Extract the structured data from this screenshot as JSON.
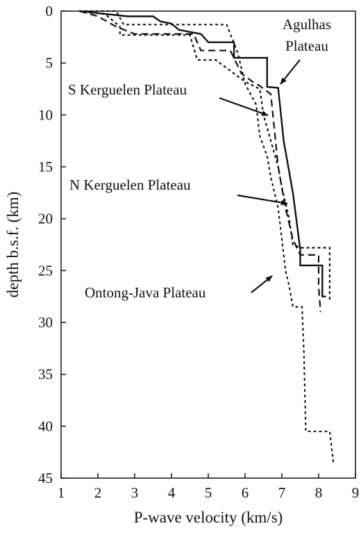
{
  "chart_data": {
    "type": "line",
    "xlabel": "P-wave velocity (km/s)",
    "ylabel": "depth b.s.f. (km)",
    "xlim": [
      1,
      9
    ],
    "ylim": [
      0,
      45
    ],
    "y_inverted": true,
    "x_ticks": [
      1,
      2,
      3,
      4,
      5,
      6,
      7,
      8,
      9
    ],
    "y_ticks": [
      0,
      5,
      10,
      15,
      20,
      25,
      30,
      35,
      40,
      45
    ],
    "grid": false,
    "legend": "none",
    "series": [
      {
        "style": "solid",
        "label_ref": "agulhas",
        "points": [
          [
            1.5,
            0
          ],
          [
            2.8,
            0.5
          ],
          [
            3.5,
            0.5
          ],
          [
            3.7,
            1.0
          ],
          [
            4.0,
            1.2
          ],
          [
            4.2,
            1.8
          ],
          [
            4.8,
            2.2
          ],
          [
            5.0,
            3.0
          ],
          [
            5.7,
            3.0
          ],
          [
            5.7,
            4.5
          ],
          [
            6.6,
            4.5
          ],
          [
            6.6,
            7.3
          ],
          [
            6.9,
            7.4
          ],
          [
            7.05,
            12.5
          ],
          [
            7.3,
            17.5
          ],
          [
            7.5,
            23.0
          ],
          [
            7.5,
            24.5
          ],
          [
            8.1,
            24.5
          ],
          [
            8.1,
            27.5
          ],
          [
            8.2,
            27.5
          ]
        ]
      },
      {
        "style": "dashed",
        "label_ref": "s_kerguelen",
        "points": [
          [
            1.5,
            0
          ],
          [
            2.0,
            0.5
          ],
          [
            2.5,
            1.5
          ],
          [
            3.0,
            2.2
          ],
          [
            4.6,
            2.2
          ],
          [
            4.8,
            3.8
          ],
          [
            5.6,
            3.8
          ],
          [
            5.9,
            6.0
          ],
          [
            6.2,
            6.8
          ],
          [
            6.4,
            7.2
          ],
          [
            6.7,
            8.0
          ],
          [
            6.9,
            15.0
          ],
          [
            7.0,
            17.0
          ],
          [
            7.1,
            19.0
          ],
          [
            7.3,
            22.0
          ],
          [
            7.5,
            23.5
          ],
          [
            8.0,
            23.5
          ],
          [
            8.0,
            26.5
          ],
          [
            8.05,
            29.0
          ]
        ]
      },
      {
        "style": "dotted",
        "label_ref": "n_kerguelen",
        "points": [
          [
            1.5,
            0
          ],
          [
            2.2,
            0.3
          ],
          [
            2.6,
            1.5
          ],
          [
            2.6,
            2.3
          ],
          [
            4.5,
            2.3
          ],
          [
            4.7,
            4.7
          ],
          [
            5.2,
            4.7
          ],
          [
            6.0,
            6.8
          ],
          [
            6.4,
            7.5
          ],
          [
            6.5,
            10.0
          ],
          [
            6.7,
            12.5
          ],
          [
            6.9,
            15.0
          ],
          [
            7.0,
            17.0
          ],
          [
            7.1,
            18.5
          ],
          [
            7.2,
            20.0
          ],
          [
            7.3,
            22.5
          ],
          [
            7.5,
            22.8
          ],
          [
            8.3,
            22.8
          ],
          [
            8.3,
            28.0
          ]
        ]
      },
      {
        "style": "dotted-sparse",
        "label_ref": "ontong_java",
        "points": [
          [
            1.5,
            0
          ],
          [
            2.5,
            0
          ],
          [
            2.7,
            1.3
          ],
          [
            5.5,
            1.3
          ],
          [
            5.8,
            4.0
          ],
          [
            5.9,
            5.5
          ],
          [
            6.0,
            7.0
          ],
          [
            6.3,
            9.0
          ],
          [
            6.4,
            12.0
          ],
          [
            6.6,
            14.0
          ],
          [
            6.7,
            16.0
          ],
          [
            6.9,
            19.0
          ],
          [
            7.0,
            22.0
          ],
          [
            7.1,
            25.0
          ],
          [
            7.2,
            26.5
          ],
          [
            7.3,
            28.5
          ],
          [
            7.55,
            28.5
          ],
          [
            7.6,
            33.0
          ],
          [
            7.65,
            40.5
          ],
          [
            8.3,
            40.5
          ],
          [
            8.4,
            43.5
          ]
        ]
      }
    ],
    "annotations": {
      "agulhas_line1": "Agulhas",
      "agulhas_line2": "Plateau",
      "s_kerguelen": "S Kerguelen Plateau",
      "n_kerguelen": "N Kerguelen Plateau",
      "ontong_java": "Ontong-Java Plateau"
    }
  }
}
